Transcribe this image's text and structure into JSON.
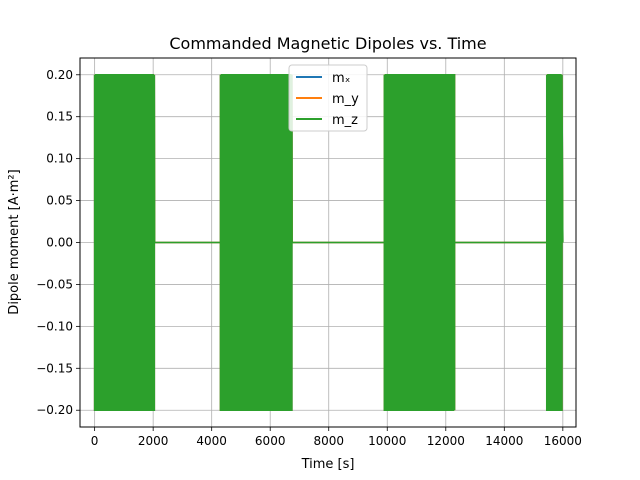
{
  "chart_data": {
    "type": "line",
    "title": "Commanded Magnetic Dipoles vs. Time",
    "xlabel": "Time [s]",
    "ylabel": "Dipole moment [A·m²]",
    "xlim": [
      -500,
      16450
    ],
    "ylim": [
      -0.22,
      0.22
    ],
    "xticks": [
      0,
      2000,
      4000,
      6000,
      8000,
      10000,
      12000,
      14000,
      16000
    ],
    "xtick_labels": [
      "0",
      "2000",
      "4000",
      "6000",
      "8000",
      "10000",
      "12000",
      "14000",
      "16000"
    ],
    "yticks": [
      -0.2,
      -0.15,
      -0.1,
      -0.05,
      0.0,
      0.05,
      0.1,
      0.15,
      0.2
    ],
    "ytick_labels": [
      "−0.20",
      "−0.15",
      "−0.10",
      "−0.05",
      "0.00",
      "0.05",
      "0.10",
      "0.15",
      "0.20"
    ],
    "grid": true,
    "legend_position": "top-center",
    "amplitude": 0.2,
    "active_intervals": [
      [
        0,
        2050
      ],
      [
        4300,
        6750
      ],
      [
        9900,
        12300
      ],
      [
        15450,
        16000
      ]
    ],
    "time_range": [
      0,
      16000
    ],
    "series": [
      {
        "name": "mₓ",
        "color": "#1f77b4"
      },
      {
        "name": "m_y",
        "color": "#ff7f0e"
      },
      {
        "name": "m_z",
        "color": "#2ca02c"
      }
    ]
  }
}
